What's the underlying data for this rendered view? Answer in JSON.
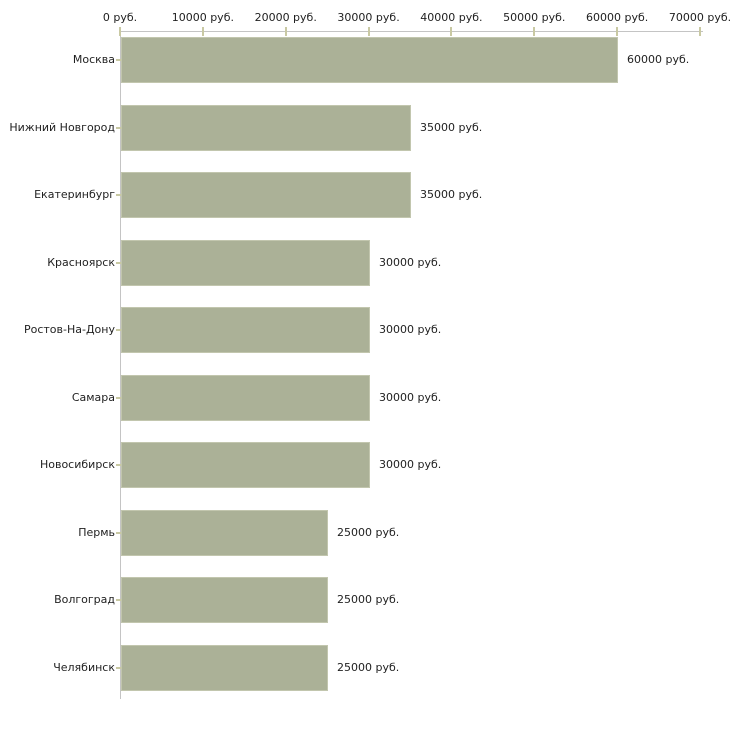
{
  "chart_data": {
    "type": "bar",
    "orientation": "horizontal",
    "title": "",
    "xlabel": "",
    "ylabel": "",
    "unit": "руб.",
    "categories": [
      "Москва",
      "Нижний Новгород",
      "Екатеринбург",
      "Красноярск",
      "Ростов-На-Дону",
      "Самара",
      "Новосибирск",
      "Пермь",
      "Волгоград",
      "Челябинск"
    ],
    "values": [
      60000,
      35000,
      35000,
      30000,
      30000,
      30000,
      30000,
      25000,
      25000,
      25000
    ],
    "bar_value_labels": [
      "60000 руб.",
      "35000 руб.",
      "35000 руб.",
      "30000 руб.",
      "30000 руб.",
      "30000 руб.",
      "30000 руб.",
      "25000 руб.",
      "25000 руб.",
      "25000 руб."
    ],
    "x_ticks": [
      0,
      10000,
      20000,
      30000,
      40000,
      50000,
      60000,
      70000
    ],
    "x_tick_labels": [
      "0 руб.",
      "10000 руб.",
      "20000 руб.",
      "30000 руб.",
      "40000 руб.",
      "50000 руб.",
      "60000 руб.",
      "70000 руб."
    ],
    "xlim": [
      0,
      70000
    ],
    "grid": false,
    "legend": "none",
    "colors": {
      "bar_fill": "#abb197",
      "bar_edge": "#c2c6ae",
      "axis_line": "#c4c4c4",
      "tick_mark": "#c9c9a3",
      "text": "#1f1f1f",
      "background": "#ffffff"
    }
  }
}
